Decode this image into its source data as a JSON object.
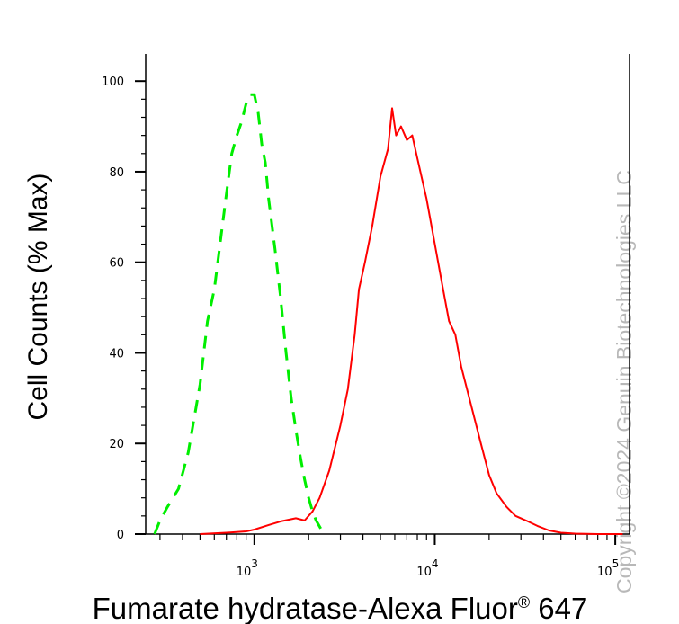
{
  "chart_data": {
    "type": "line",
    "xlabel_main": "Fumarate hydratase-Alexa Fluor",
    "xlabel_reg": "®",
    "xlabel_tail": " 647",
    "ylabel": "Cell Counts (% Max)",
    "x_scale": "log",
    "xlim": [
      250,
      120000
    ],
    "ylim": [
      0,
      105
    ],
    "x_ticks": [
      {
        "value": 1000,
        "base": "10",
        "exp": "3"
      },
      {
        "value": 10000,
        "base": "10",
        "exp": "4"
      },
      {
        "value": 100000,
        "base": "10",
        "exp": "5"
      }
    ],
    "y_ticks": [
      "0",
      "20",
      "40",
      "60",
      "80",
      "100"
    ],
    "grid": false,
    "series": [
      {
        "color": "#00ee00",
        "style": "dashed",
        "x": [
          280,
          300,
          330,
          380,
          430,
          500,
          550,
          600,
          650,
          700,
          750,
          800,
          850,
          900,
          950,
          1000,
          1050,
          1100,
          1150,
          1200,
          1300,
          1400,
          1500,
          1600,
          1700,
          1800,
          1900,
          2000,
          2100,
          2200,
          2350,
          2500
        ],
        "y": [
          0,
          3,
          6,
          10,
          18,
          33,
          47,
          54,
          65,
          75,
          84,
          88,
          91,
          95,
          97,
          97,
          93,
          86,
          82,
          74,
          63,
          52,
          40,
          30,
          23,
          17,
          12,
          8,
          5,
          3,
          1,
          0
        ]
      },
      {
        "color": "#ff0000",
        "style": "solid",
        "x": [
          500,
          700,
          900,
          1000,
          1200,
          1400,
          1700,
          1900,
          2100,
          2300,
          2600,
          3000,
          3300,
          3600,
          3800,
          4100,
          4500,
          5000,
          5500,
          5800,
          6100,
          6500,
          7000,
          7500,
          8000,
          9000,
          10000,
          11000,
          12000,
          13000,
          14000,
          16000,
          18000,
          20000,
          22000,
          25000,
          28000,
          32000,
          37000,
          43000,
          50000,
          60000,
          80000,
          110000
        ],
        "y": [
          0,
          0.3,
          0.6,
          1,
          2,
          2.8,
          3.5,
          3,
          5,
          8,
          14,
          24,
          32,
          44,
          54,
          60,
          68,
          79,
          85,
          94,
          88,
          90,
          87,
          88,
          83,
          74,
          64,
          55,
          47,
          44,
          37,
          28,
          20,
          13,
          9,
          6,
          4,
          3,
          1.8,
          0.8,
          0.3,
          0.1,
          0,
          0
        ]
      }
    ],
    "watermark": "Copyright ©2024 Genuin Biotechnologies LLC"
  }
}
